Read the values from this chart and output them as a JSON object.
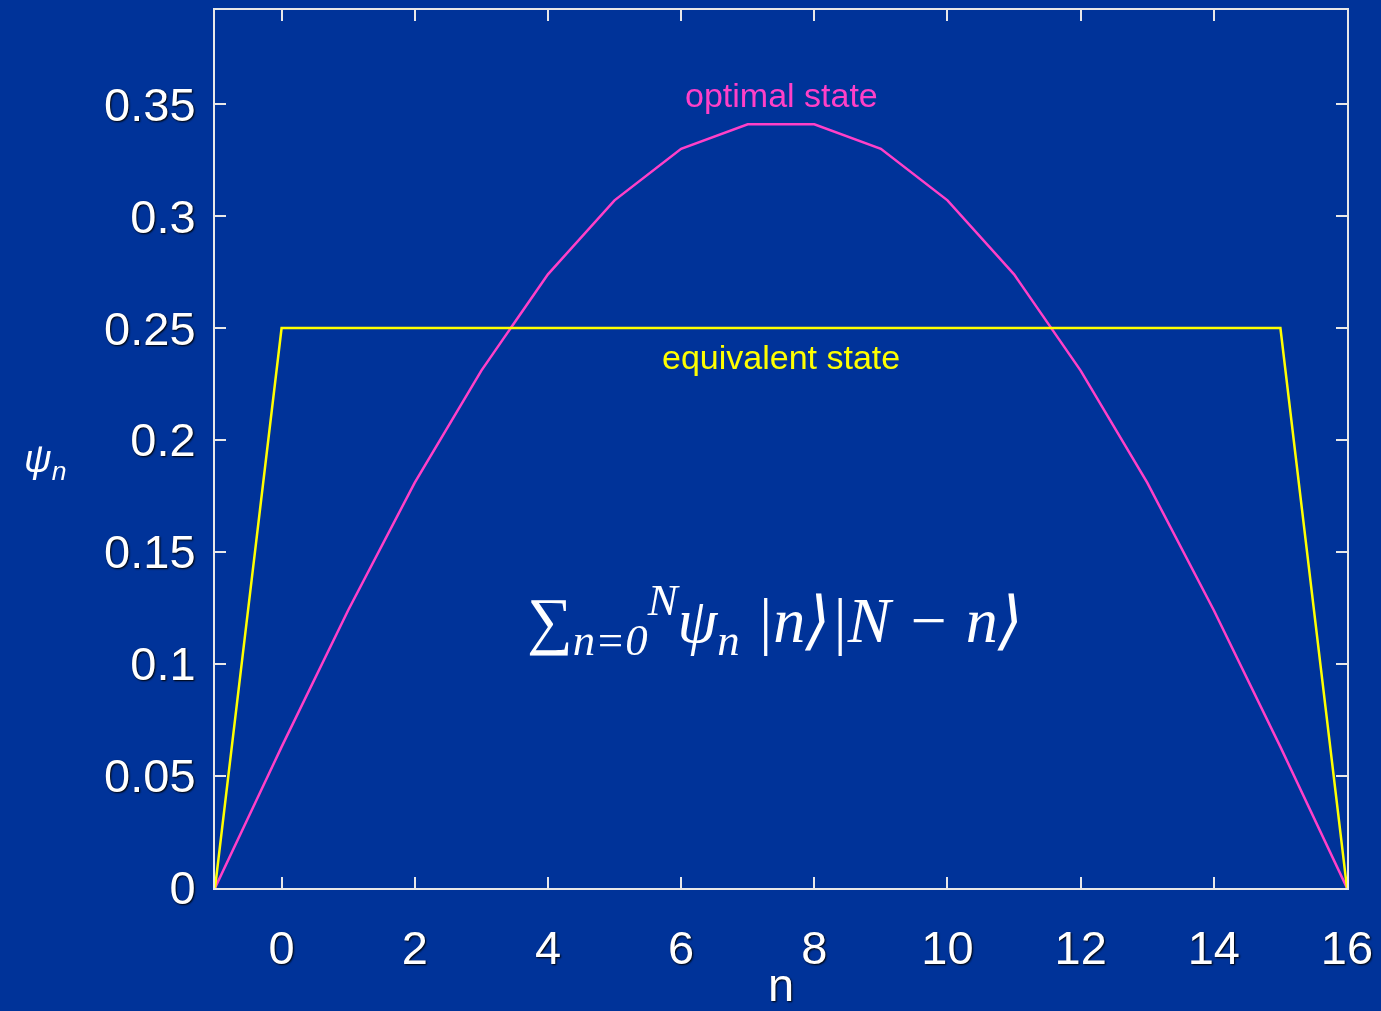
{
  "chart_data": {
    "type": "line",
    "xlabel": "n",
    "ylabel": "ψ$_{n}$",
    "annotations": [
      "∑$_{n=0}$$^{N}$ψ$_{n}$ |n⟩|N − n⟩"
    ],
    "x": [
      -1,
      0,
      1,
      2,
      3,
      4,
      5,
      6,
      7,
      8,
      9,
      10,
      11,
      12,
      13,
      14,
      15,
      16
    ],
    "series": [
      {
        "name": "optimal state",
        "color": "#ff40c8",
        "values": [
          0,
          0.063,
          0.124,
          0.181,
          0.231,
          0.274,
          0.307,
          0.33,
          0.341,
          0.341,
          0.33,
          0.307,
          0.274,
          0.231,
          0.181,
          0.124,
          0.063,
          0
        ]
      },
      {
        "name": "equivalent state",
        "color": "#ffff00",
        "values": [
          0,
          0.25,
          0.25,
          0.25,
          0.25,
          0.25,
          0.25,
          0.25,
          0.25,
          0.25,
          0.25,
          0.25,
          0.25,
          0.25,
          0.25,
          0.25,
          0.25,
          0
        ]
      }
    ],
    "xlim": [
      -1,
      16
    ],
    "xticks": [
      0,
      2,
      4,
      6,
      8,
      10,
      12,
      14,
      16
    ],
    "ylim": [
      0,
      0.392
    ],
    "yticks": [
      0,
      0.05,
      0.1,
      0.15,
      0.2,
      0.25,
      0.3,
      0.35
    ]
  }
}
